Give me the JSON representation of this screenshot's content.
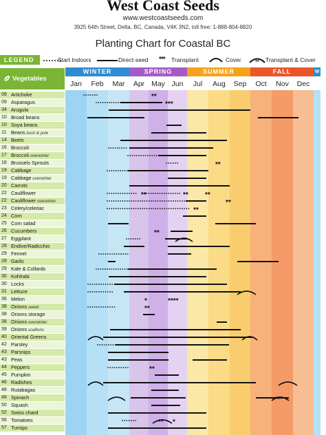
{
  "header": {
    "brand": "West Coast Seeds",
    "url": "www.westcoastseeds.com",
    "address": "3925 64th Street, Delta, BC, Canada, V4K 3N2, toll free: 1-888-804-8820",
    "title": "Planting Chart for Coastal BC"
  },
  "legend": {
    "tag": "LEGEND",
    "items": [
      "Start Indoors",
      "Direct-seed",
      "Transplant",
      "Cover",
      "Transplant & Cover"
    ]
  },
  "seasons": [
    "WINTER",
    "SPRING",
    "SUMMER",
    "FALL",
    "W"
  ],
  "months": [
    "Jan",
    "Feb",
    "Mar",
    "Apr",
    "May",
    "Jun",
    "Jul",
    "Aug",
    "Sep",
    "Oct",
    "Nov",
    "Dec"
  ],
  "vegetables_header": "Vegetables",
  "colors": {
    "green": "#7ab534",
    "winter": "#2f8bd2",
    "spring": "#a55bc6",
    "summer": "#f5a21c",
    "fall": "#e9562a",
    "row_a": "#d5e9a8",
    "row_b": "#ecf5d8"
  },
  "vegetables": [
    {
      "code": "08",
      "name": "Artichoke",
      "note": ""
    },
    {
      "code": "09",
      "name": "Asparagus",
      "note": ""
    },
    {
      "code": "34",
      "name": "Arugula",
      "note": ""
    },
    {
      "code": "10",
      "name": "Broad beans",
      "note": ""
    },
    {
      "code": "10",
      "name": "Soya beans",
      "note": ""
    },
    {
      "code": "11",
      "name": "Beans",
      "note": "bush & pole"
    },
    {
      "code": "14",
      "name": "Beets",
      "note": ""
    },
    {
      "code": "16",
      "name": "Broccoli",
      "note": ""
    },
    {
      "code": "17",
      "name": "Broccoli",
      "note": "overwinter"
    },
    {
      "code": "18",
      "name": "Brussels Sprouts",
      "note": ""
    },
    {
      "code": "19",
      "name": "Cabbage",
      "note": ""
    },
    {
      "code": "19",
      "name": "Cabbage",
      "note": "overwinter"
    },
    {
      "code": "20",
      "name": "Carrots",
      "note": ""
    },
    {
      "code": "22",
      "name": "Cauliflower",
      "note": ""
    },
    {
      "code": "22",
      "name": "Cauliflower",
      "note": "overwinter"
    },
    {
      "code": "23",
      "name": "Celery/celeriac",
      "note": ""
    },
    {
      "code": "24",
      "name": "Corn",
      "note": ""
    },
    {
      "code": "25",
      "name": "Corn salad",
      "note": ""
    },
    {
      "code": "26",
      "name": "Cucumbers",
      "note": ""
    },
    {
      "code": "27",
      "name": "Eggplant",
      "note": ""
    },
    {
      "code": "28",
      "name": "Endive/Radicchio",
      "note": ""
    },
    {
      "code": "29",
      "name": "Fennel",
      "note": ""
    },
    {
      "code": "28",
      "name": "Garlic",
      "note": ""
    },
    {
      "code": "29",
      "name": "Kale & Collards",
      "note": ""
    },
    {
      "code": "30",
      "name": "Kohlrabi",
      "note": ""
    },
    {
      "code": "30",
      "name": "Locks",
      "note": ""
    },
    {
      "code": "31",
      "name": "Lettuce",
      "note": ""
    },
    {
      "code": "36",
      "name": "Melon",
      "note": ""
    },
    {
      "code": "38",
      "name": "Onions",
      "note": "sweet"
    },
    {
      "code": "38",
      "name": "Onions storage",
      "note": ""
    },
    {
      "code": "38",
      "name": "Onions",
      "note": "overwinter"
    },
    {
      "code": "39",
      "name": "Onions",
      "note": "scallions"
    },
    {
      "code": "40",
      "name": "Oriental Greens",
      "note": ""
    },
    {
      "code": "42",
      "name": "Parsley",
      "note": ""
    },
    {
      "code": "43",
      "name": "Parsnips",
      "note": ""
    },
    {
      "code": "43",
      "name": "Peas",
      "note": ""
    },
    {
      "code": "44",
      "name": "Peppers",
      "note": ""
    },
    {
      "code": "45",
      "name": "Pumpkin",
      "note": ""
    },
    {
      "code": "46",
      "name": "Radishes",
      "note": ""
    },
    {
      "code": "48",
      "name": "Rutabagas",
      "note": ""
    },
    {
      "code": "48",
      "name": "Spinach",
      "note": ""
    },
    {
      "code": "50",
      "name": "Squash",
      "note": ""
    },
    {
      "code": "52",
      "name": "Swiss chard",
      "note": ""
    },
    {
      "code": "56",
      "name": "Tomatoes",
      "note": ""
    },
    {
      "code": "57",
      "name": "Turnips",
      "note": ""
    }
  ]
}
